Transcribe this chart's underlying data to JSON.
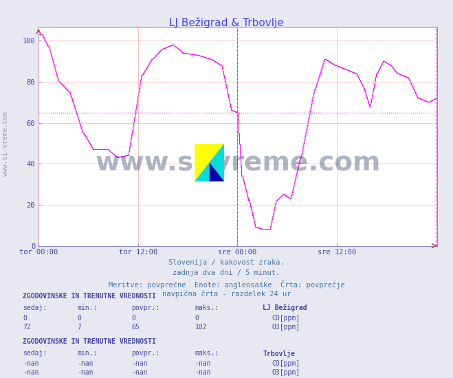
{
  "title": "LJ Bežigrad & Trbovlje",
  "title_color": "#4444ff",
  "bg_color": "#e8e8f0",
  "plot_bg_color": "#ffffff",
  "grid_color": "#ffaaaa",
  "xlabel_ticks": [
    "tor 00:00",
    "tor 12:00",
    "sre 00:00",
    "sre 12:00"
  ],
  "ylabel_ticks": [
    0,
    20,
    40,
    60,
    80,
    100
  ],
  "ylim": [
    0,
    107
  ],
  "xlim": [
    0,
    577
  ],
  "avg_line_y": 65,
  "avg_line_color": "#ff00ff",
  "vline_x": 288,
  "vline_end_x": 576,
  "vline_color": "#cc44cc",
  "axis_color": "#8888cc",
  "tick_color": "#4444aa",
  "watermark": "www.si-vreme.com",
  "watermark_color": "#1a2a5a",
  "sub_text1": "Slovenija / kakovost zraka.",
  "sub_text2": "zadnja dva dni / 5 minut.",
  "sub_text3": "Meritve: povprečne  Enote: angleosaške  Črta: povprečje",
  "sub_text4": "navpična črta - razdelek 24 ur",
  "sub_color": "#4477aa",
  "legend1_title": "ZGODOVINSKE IN TRENUTNE VREDNOSTI",
  "legend1_header": "sedaj:    min.:    povpr.:    maks.:    LJ Bežigrad",
  "legend1_row1": "  0          0          0          0",
  "legend1_row2": " 72          7         65        102",
  "legend2_title": "ZGODOVINSKE IN TRENUTNE VREDNOSTI",
  "legend2_header": "sedaj:    min.:    povpr.:    maks.:    Trbovlje",
  "legend2_row1": " -nan       -nan       -nan       -nan",
  "legend2_row2": " -nan       -nan       -nan       -nan",
  "co_color_lj": "#00cccc",
  "o3_color_lj": "#ff00ff",
  "co_color_tr": "#00cccc",
  "o3_color_tr": "#ff00ff",
  "logo_colors": [
    "#ffff00",
    "#00cccc",
    "#0000aa"
  ],
  "sidewatermark": "www.si-vreme.com"
}
